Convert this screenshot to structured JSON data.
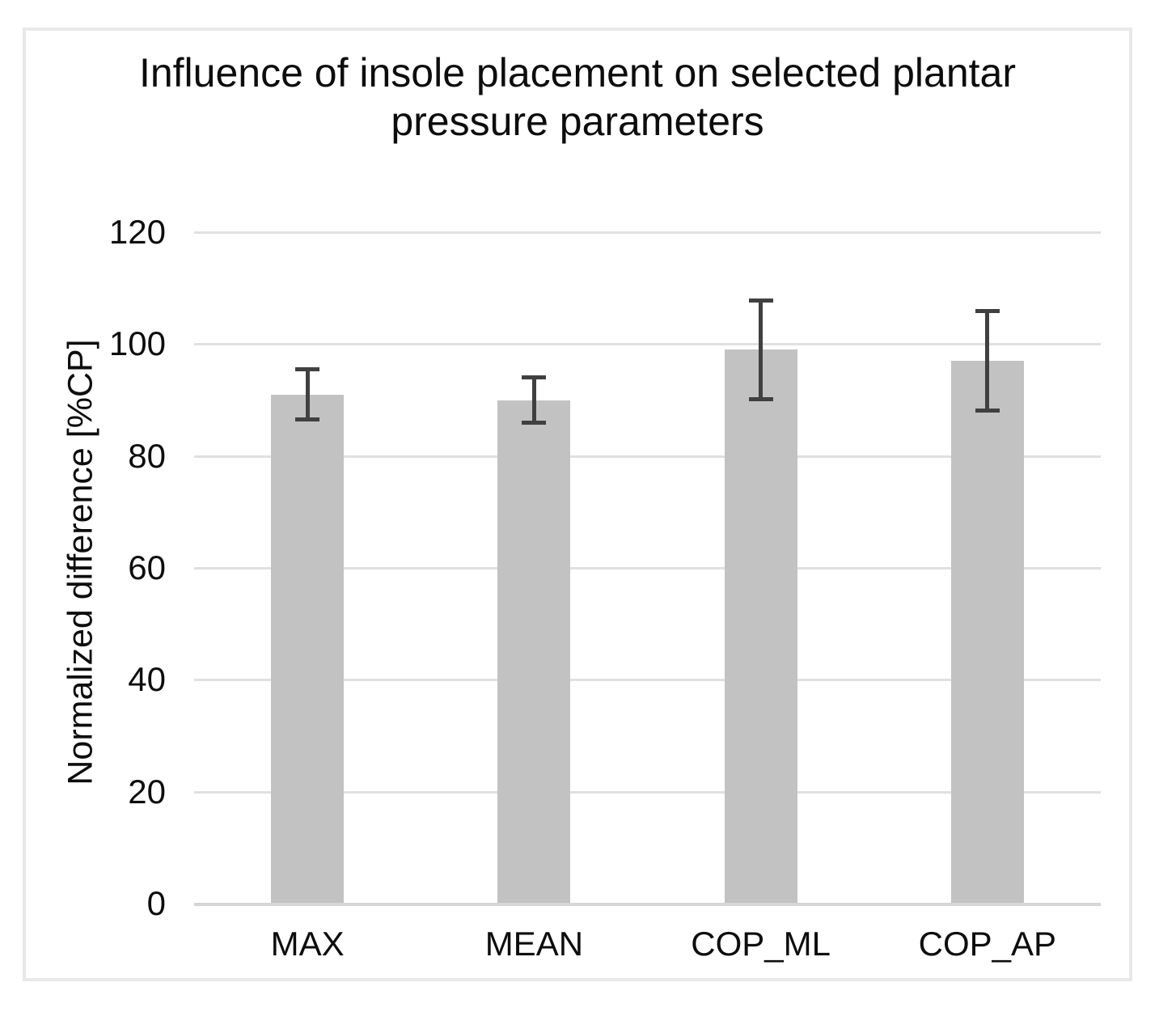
{
  "colors": {
    "background": "#ffffff",
    "frame_border": "#e8e8e8",
    "text": "#0d0d0d",
    "bar_fill": "#c2c2c2",
    "error_bar": "#404040",
    "gridline": "#e0e0e0",
    "axis_line": "#d6d6d6"
  },
  "chart_data": {
    "type": "bar",
    "title": "Influence of insole placement on selected plantar pressure parameters",
    "title_lines": [
      "Influence of insole placement on selected plantar",
      "pressure parameters"
    ],
    "categories": [
      "MAX",
      "MEAN",
      "COP_ML",
      "COP_AP"
    ],
    "values": [
      91,
      90,
      99,
      97
    ],
    "errors": [
      4.8,
      4.4,
      9.2,
      9.3
    ],
    "xlabel": "",
    "ylabel": "Normalized difference [%CP]",
    "ylim": [
      0,
      120
    ],
    "yticks": [
      120,
      100,
      80,
      60,
      40,
      20,
      0
    ],
    "grid": true,
    "legend": "none",
    "bar_color_note": "all bars single gray series with symmetric error bars"
  }
}
